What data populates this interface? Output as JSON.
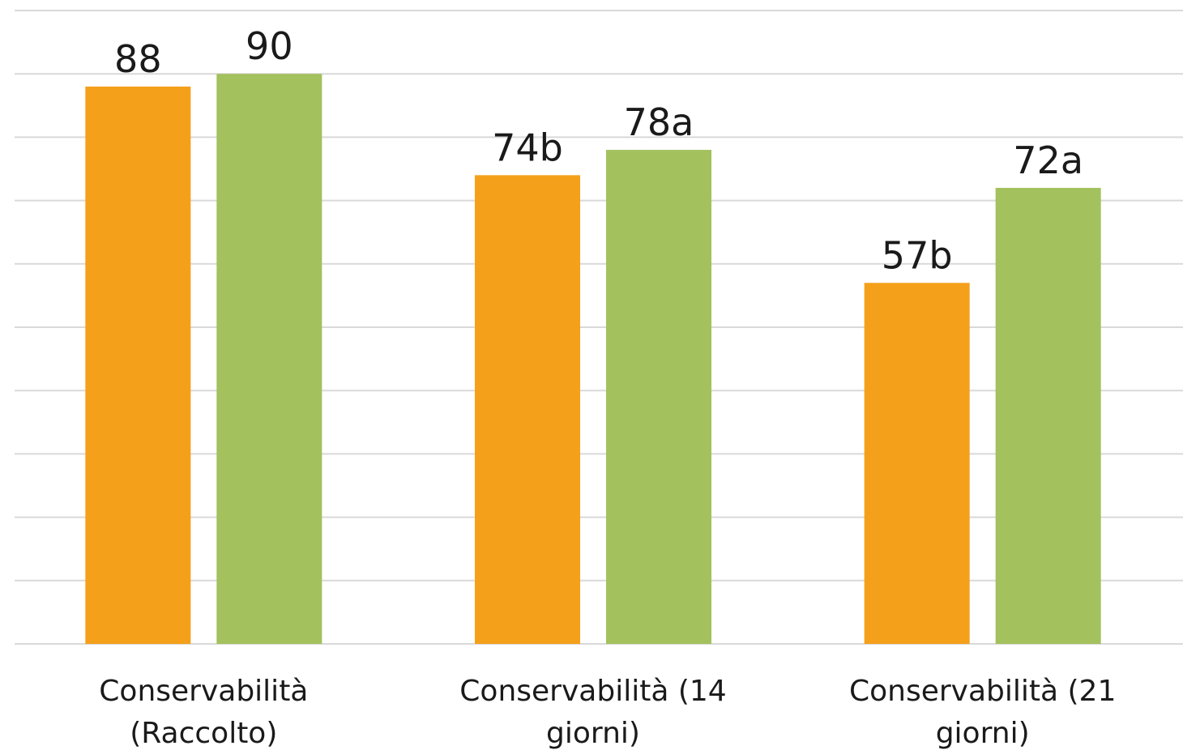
{
  "chart_data": {
    "type": "bar",
    "categories": [
      [
        "Conservabilità",
        "(Raccolto)"
      ],
      [
        "Conservabilità (14",
        "giorni)"
      ],
      [
        "Conservabilità (21",
        "giorni)"
      ]
    ],
    "series": [
      {
        "values": [
          88,
          74,
          57
        ],
        "labels": [
          "88",
          "74b",
          "57b"
        ],
        "color": "#f5a01a"
      },
      {
        "values": [
          90,
          78,
          72
        ],
        "labels": [
          "90",
          "78a",
          "72a"
        ],
        "color": "#a3c15d"
      }
    ],
    "ylim": [
      0,
      100
    ],
    "grid": true,
    "legend": "none",
    "gridline_color": "#d9d9d9",
    "text_color": "#1a1a1a"
  }
}
